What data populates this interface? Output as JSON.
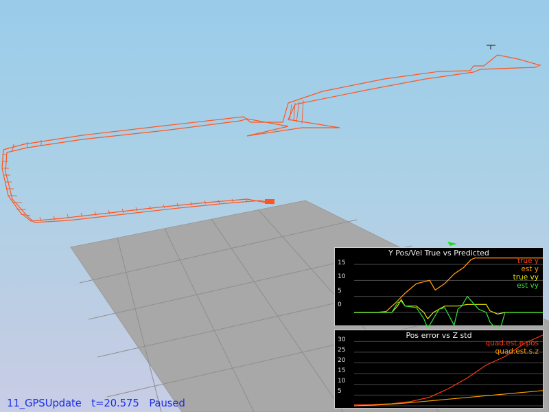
{
  "colors": {
    "trajectory": "#ff5520",
    "ground": "#a8a8a8",
    "ground_lines": "#8e8e8e",
    "status_text": "#1d2ee6"
  },
  "status": {
    "scenario": "11_GPSUpdate",
    "time": "t=20.575",
    "state": "Paused"
  },
  "charts": [
    {
      "title": "Y Pos/Vel True vs Predicted",
      "yticks": [
        "15",
        "10",
        "5",
        "0"
      ],
      "legend": [
        {
          "label": "true y",
          "color": "#ff3c14"
        },
        {
          "label": "est y",
          "color": "#ffa000"
        },
        {
          "label": "true vy",
          "color": "#e8e800"
        },
        {
          "label": "est vy",
          "color": "#35e53b"
        }
      ]
    },
    {
      "title": "Pos error vs Z std",
      "yticks": [
        "30",
        "25",
        "20",
        "15",
        "10",
        "5"
      ],
      "legend": [
        {
          "label": "quad.est.e.pos",
          "color": "#ff3c14"
        },
        {
          "label": "quad.est.s.z",
          "color": "#ffa000"
        }
      ]
    }
  ],
  "chart_data": [
    {
      "type": "line",
      "title": "Y Pos/Vel True vs Predicted",
      "ylim": [
        -3,
        18
      ],
      "series": [
        {
          "name": "true y",
          "x": [
            0,
            12,
            17,
            22,
            27,
            33,
            40,
            43,
            48,
            53,
            58,
            62,
            64,
            100
          ],
          "values": [
            0,
            0,
            0.3,
            3,
            6,
            9,
            10,
            7,
            9,
            12,
            14,
            16.5,
            17,
            17
          ]
        },
        {
          "name": "est y",
          "x": [
            0,
            12,
            17,
            22,
            27,
            33,
            40,
            43,
            48,
            53,
            58,
            62,
            64,
            100
          ],
          "values": [
            0,
            0,
            0.3,
            3,
            6,
            9,
            10,
            7,
            9,
            12,
            14,
            16.5,
            17,
            17
          ]
        },
        {
          "name": "true vy",
          "x": [
            0,
            20,
            23,
            25,
            27,
            33,
            37,
            39,
            42,
            45,
            48,
            55,
            60,
            66,
            70,
            72,
            76,
            80,
            100
          ],
          "values": [
            0,
            0,
            2,
            4,
            2,
            2,
            0,
            -2,
            0,
            1,
            2,
            2,
            2.5,
            2.5,
            2.5,
            0.5,
            -0.5,
            0,
            0
          ]
        },
        {
          "name": "est vy",
          "x": [
            0,
            20,
            23,
            25,
            27,
            33,
            37,
            39,
            42,
            45,
            48,
            53,
            55,
            57,
            60,
            66,
            70,
            72,
            75,
            78,
            80,
            100
          ],
          "values": [
            0,
            0,
            3,
            3.5,
            2,
            1.5,
            -2,
            -5,
            -2,
            1,
            1.5,
            -4,
            1,
            2,
            5,
            1,
            0,
            -3,
            -5,
            -4,
            0,
            0
          ]
        }
      ]
    },
    {
      "type": "line",
      "title": "Pos error vs Z std",
      "ylim": [
        0,
        32
      ],
      "series": [
        {
          "name": "quad.est.e.pos",
          "x": [
            0,
            10,
            20,
            30,
            40,
            50,
            60,
            70,
            80,
            90,
            100
          ],
          "values": [
            0.5,
            0.6,
            1,
            2,
            4,
            8,
            13,
            19,
            23,
            29,
            33
          ]
        },
        {
          "name": "quad.est.s.z",
          "x": [
            0,
            10,
            20,
            30,
            40,
            50,
            60,
            70,
            80,
            90,
            100
          ],
          "values": [
            0,
            0.3,
            0.8,
            1.5,
            2.3,
            3.1,
            3.9,
            4.7,
            5.5,
            6.3,
            7.1
          ]
        }
      ]
    }
  ]
}
